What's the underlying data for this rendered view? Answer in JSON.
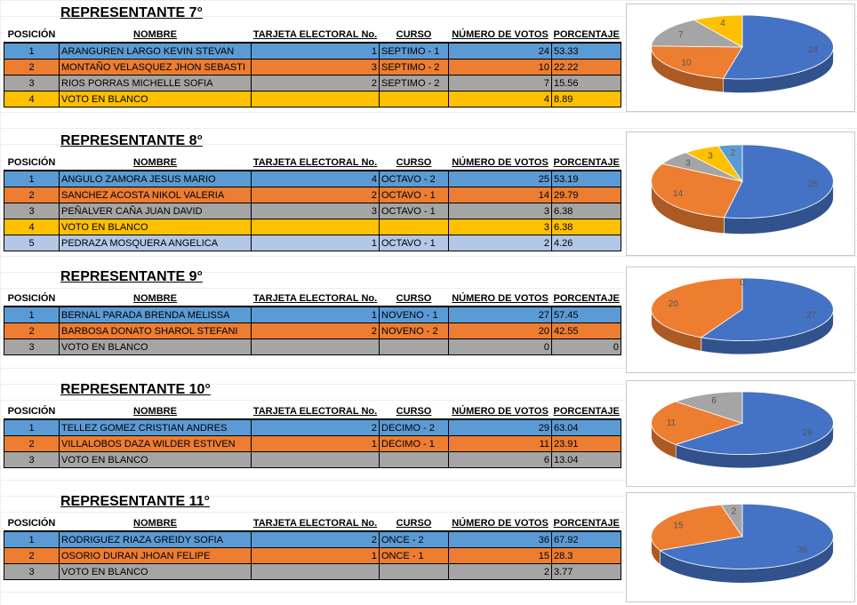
{
  "headers": {
    "posicion": "POSICIÓN",
    "nombre": "NOMBRE",
    "tarjeta": "TARJETA ELECTORAL No.",
    "curso": "CURSO",
    "votos": "NÚMERO DE VOTOS",
    "porcentaje": "PORCENTAJE"
  },
  "colors": {
    "blue": "#4472c4",
    "orange": "#ed7d31",
    "gray": "#a5a5a5",
    "yellow": "#ffc000",
    "light_blue": "#5b9bd5"
  },
  "sections": [
    {
      "title": "REPRESENTANTE 7°",
      "rows": [
        {
          "pos": "1",
          "nombre": "ARANGUREN LARGO KEVIN STEVAN",
          "tarjeta": "1",
          "curso": "SEPTIMO - 1",
          "votos": "24",
          "porcentaje": "53.33",
          "color": "blue"
        },
        {
          "pos": "2",
          "nombre": "MONTAÑO VELASQUEZ JHON SEBASTI",
          "tarjeta": "3",
          "curso": "SEPTIMO - 2",
          "votos": "10",
          "porcentaje": "22.22",
          "color": "orange"
        },
        {
          "pos": "3",
          "nombre": "RIOS PORRAS MICHELLE SOFIA",
          "tarjeta": "2",
          "curso": "SEPTIMO - 2",
          "votos": "7",
          "porcentaje": "15.56",
          "color": "gray"
        },
        {
          "pos": "4",
          "nombre": "VOTO EN BLANCO",
          "tarjeta": "",
          "curso": "",
          "votos": "4",
          "porcentaje": "8.89",
          "color": "yellow"
        }
      ]
    },
    {
      "title": "REPRESENTANTE 8°",
      "rows": [
        {
          "pos": "1",
          "nombre": "ANGULO ZAMORA JESUS MARIO",
          "tarjeta": "4",
          "curso": "OCTAVO - 2",
          "votos": "25",
          "porcentaje": "53.19",
          "color": "blue"
        },
        {
          "pos": "2",
          "nombre": "SANCHEZ ACOSTA NIKOL VALERIA",
          "tarjeta": "2",
          "curso": "OCTAVO - 1",
          "votos": "14",
          "porcentaje": "29.79",
          "color": "orange"
        },
        {
          "pos": "3",
          "nombre": "PEÑALVER CAÑA JUAN DAVID",
          "tarjeta": "3",
          "curso": "OCTAVO - 1",
          "votos": "3",
          "porcentaje": "6.38",
          "color": "gray"
        },
        {
          "pos": "4",
          "nombre": "VOTO EN BLANCO",
          "tarjeta": "",
          "curso": "",
          "votos": "3",
          "porcentaje": "6.38",
          "color": "yellow"
        },
        {
          "pos": "5",
          "nombre": "PEDRAZA MOSQUERA ANGELICA",
          "tarjeta": "1",
          "curso": "OCTAVO - 1",
          "votos": "2",
          "porcentaje": "4.26",
          "color": "lblue"
        }
      ]
    },
    {
      "title": "REPRESENTANTE 9°",
      "rows": [
        {
          "pos": "1",
          "nombre": "BERNAL PARADA BRENDA MELISSA",
          "tarjeta": "1",
          "curso": "NOVENO - 1",
          "votos": "27",
          "porcentaje": "57.45",
          "color": "blue"
        },
        {
          "pos": "2",
          "nombre": "BARBOSA DONATO SHAROL STEFANI",
          "tarjeta": "2",
          "curso": "NOVENO - 2",
          "votos": "20",
          "porcentaje": "42.55",
          "color": "orange"
        },
        {
          "pos": "3",
          "nombre": "VOTO EN BLANCO",
          "tarjeta": "",
          "curso": "",
          "votos": "0",
          "porcentaje": "0",
          "color": "gray",
          "pct_right": true
        }
      ]
    },
    {
      "title": "REPRESENTANTE 10°",
      "rows": [
        {
          "pos": "1",
          "nombre": "TELLEZ GOMEZ CRISTIAN ANDRES",
          "tarjeta": "2",
          "curso": "DECIMO - 2",
          "votos": "29",
          "porcentaje": "63.04",
          "color": "blue"
        },
        {
          "pos": "2",
          "nombre": "VILLALOBOS DAZA WILDER ESTIVEN",
          "tarjeta": "1",
          "curso": "DECIMO - 1",
          "votos": "11",
          "porcentaje": "23.91",
          "color": "orange"
        },
        {
          "pos": "3",
          "nombre": "VOTO EN BLANCO",
          "tarjeta": "",
          "curso": "",
          "votos": "6",
          "porcentaje": "13.04",
          "color": "gray"
        }
      ]
    },
    {
      "title": "REPRESENTANTE 11°",
      "rows": [
        {
          "pos": "1",
          "nombre": "RODRIGUEZ RIAZA GREIDY SOFIA",
          "tarjeta": "2",
          "curso": "ONCE - 2",
          "votos": "36",
          "porcentaje": "67.92",
          "color": "blue"
        },
        {
          "pos": "2",
          "nombre": "OSORIO DURAN JHOAN FELIPE",
          "tarjeta": "1",
          "curso": "ONCE - 1",
          "votos": "15",
          "porcentaje": "28.3",
          "color": "orange"
        },
        {
          "pos": "3",
          "nombre": "VOTO EN BLANCO",
          "tarjeta": "",
          "curso": "",
          "votos": "2",
          "porcentaje": "3.77",
          "color": "gray"
        }
      ]
    }
  ],
  "chart_data": [
    {
      "type": "pie",
      "values": [
        24,
        10,
        7,
        4
      ],
      "colors": [
        "#4472c4",
        "#ed7d31",
        "#a5a5a5",
        "#ffc000"
      ]
    },
    {
      "type": "pie",
      "values": [
        25,
        14,
        3,
        3,
        2
      ],
      "colors": [
        "#4472c4",
        "#ed7d31",
        "#a5a5a5",
        "#ffc000",
        "#5b9bd5"
      ]
    },
    {
      "type": "pie",
      "values": [
        27,
        20,
        0
      ],
      "colors": [
        "#4472c4",
        "#ed7d31",
        "#a5a5a5"
      ]
    },
    {
      "type": "pie",
      "values": [
        29,
        11,
        6
      ],
      "colors": [
        "#4472c4",
        "#ed7d31",
        "#a5a5a5"
      ]
    },
    {
      "type": "pie",
      "values": [
        36,
        15,
        2
      ],
      "colors": [
        "#4472c4",
        "#ed7d31",
        "#a5a5a5"
      ]
    }
  ]
}
